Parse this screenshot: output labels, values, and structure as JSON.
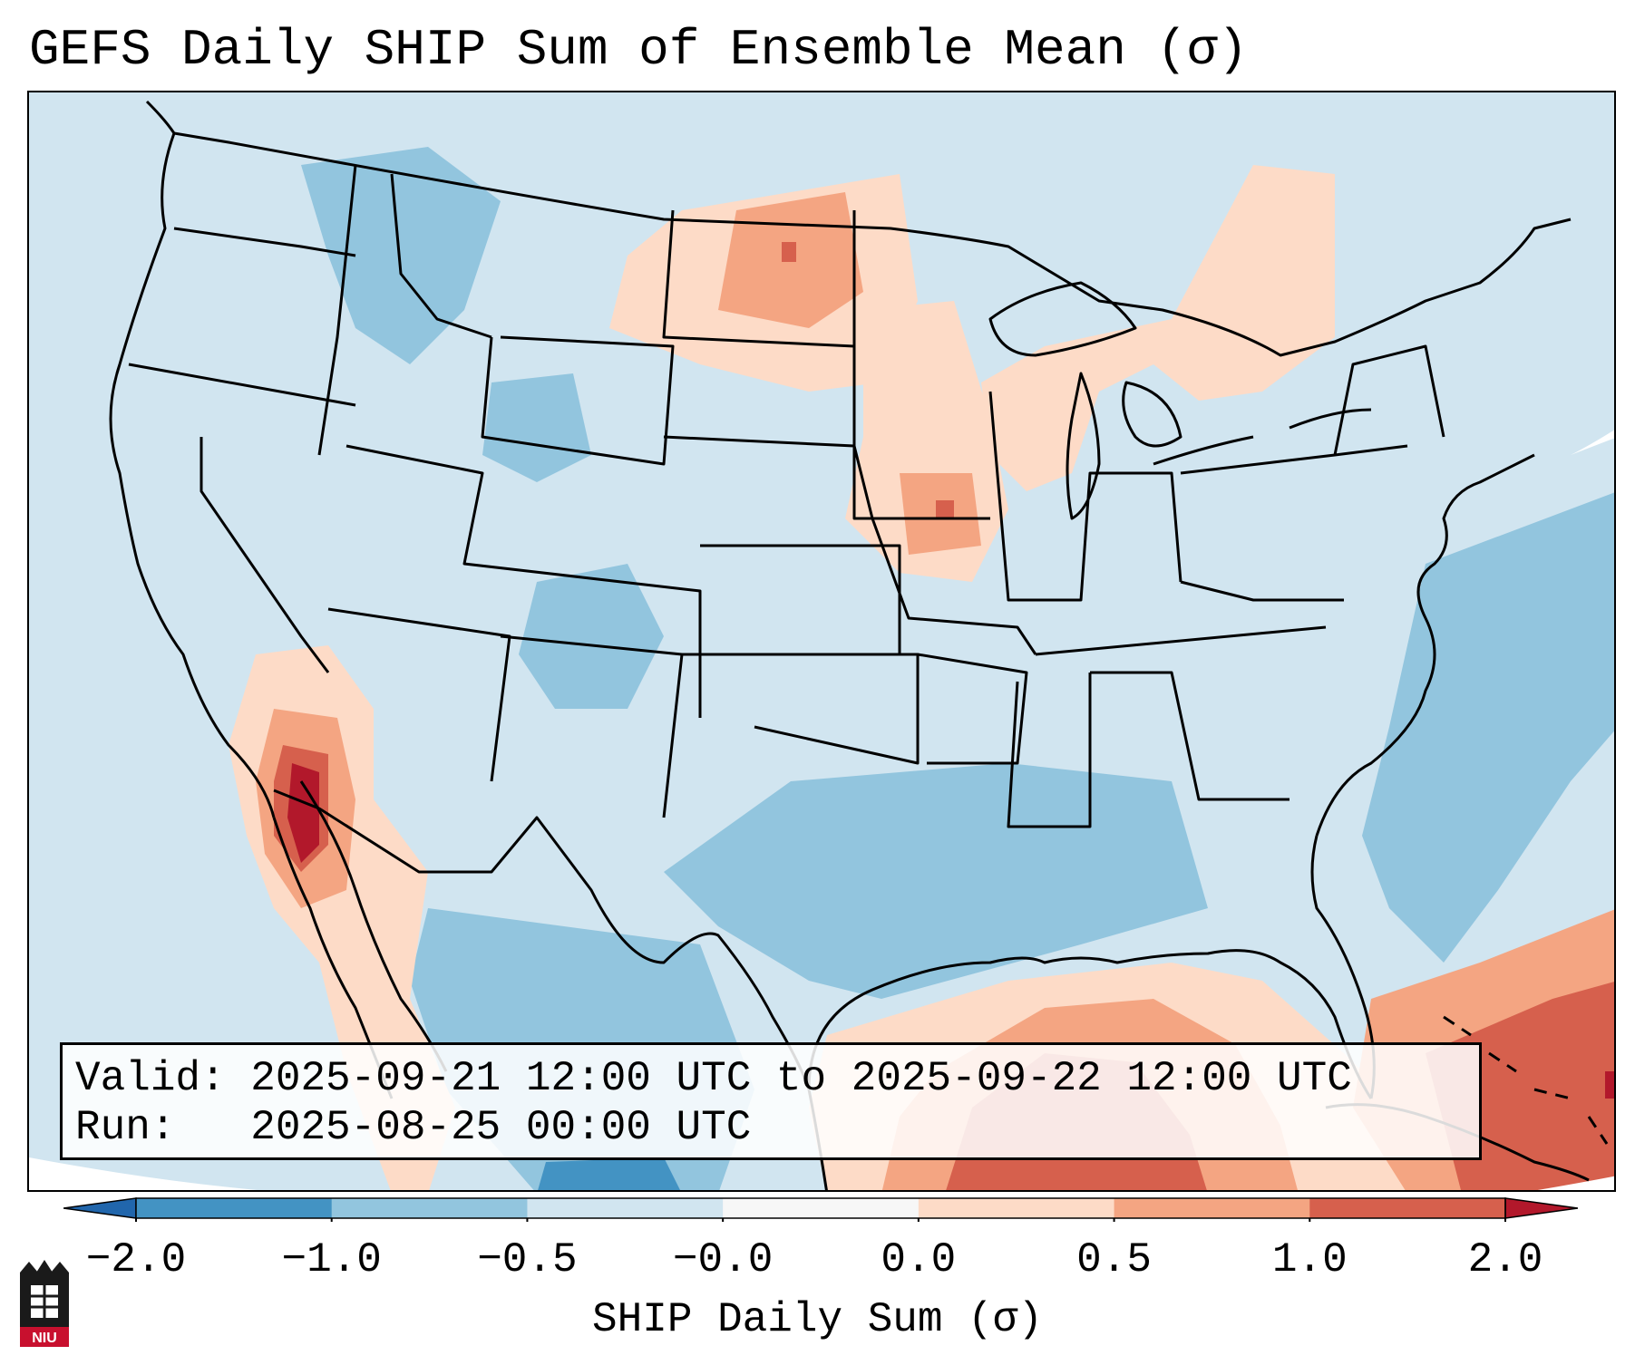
{
  "title": "GEFS Daily SHIP Sum of Ensemble Mean (σ)",
  "info": {
    "valid_line": "Valid: 2025-09-21 12:00 UTC to 2025-09-22 12:00 UTC",
    "run_line": "Run:   2025-08-25 00:00 UTC"
  },
  "colorbar": {
    "label": "SHIP Daily Sum (σ)",
    "ticks": [
      "−2.0",
      "−1.0",
      "−0.5",
      "−0.0",
      "0.0",
      "0.5",
      "1.0",
      "2.0"
    ],
    "colors": [
      "#4393c3",
      "#92c5de",
      "#d1e5f0",
      "#f7f7f7",
      "#fddbc7",
      "#f4a582",
      "#d6604d"
    ],
    "extend_low": "#2166ac",
    "extend_high": "#b2182b"
  },
  "logo_text": "NIU",
  "chart_data": {
    "type": "heatmap",
    "title": "GEFS Daily SHIP Sum of Ensemble Mean (σ)",
    "variable": "SHIP Daily Sum (σ)",
    "levels": [
      -2.0,
      -1.0,
      -0.5,
      -0.0,
      0.0,
      0.5,
      1.0,
      2.0
    ],
    "extend": "both",
    "region": "Continental United States",
    "notable_features": [
      {
        "region": "Southern California / Southern Nevada",
        "range": "1.0 to 2.0+"
      },
      {
        "region": "Gulf of Mexico",
        "range": "0.5 to 2.0"
      },
      {
        "region": "Caribbean / Bahamas",
        "range": "1.0 to 2.0+"
      },
      {
        "region": "North Dakota / Minnesota",
        "range": "0.0 to 1.0"
      },
      {
        "region": "Texas / Lower Mississippi Valley",
        "range": "-1.0 to -0.5"
      },
      {
        "region": "Western Atlantic",
        "range": "-1.0 to -0.5"
      }
    ]
  }
}
